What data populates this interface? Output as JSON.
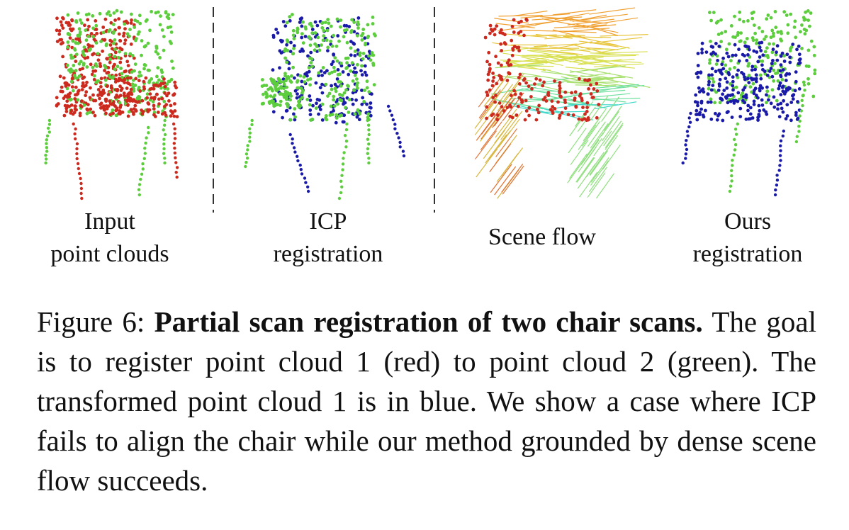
{
  "panels": [
    {
      "line1": "Input",
      "line2": "point clouds"
    },
    {
      "line1": "ICP",
      "line2": "registration"
    },
    {
      "line1": "Scene flow",
      "line2": ""
    },
    {
      "line1": "Ours",
      "line2": "registration"
    }
  ],
  "caption": {
    "label": "Figure 6:",
    "title": "Partial scan registration of two chair scans.",
    "body": "The goal is to register point cloud 1 (red) to point cloud 2 (green). The transformed point cloud 1 is in blue. We show a case where ICP fails to align the chair while our method grounded by dense scene flow succeeds."
  },
  "colors": {
    "cloud1": "#cc2a1e",
    "cloud2": "#5ccd3c",
    "transformed": "#1a1aa8"
  }
}
